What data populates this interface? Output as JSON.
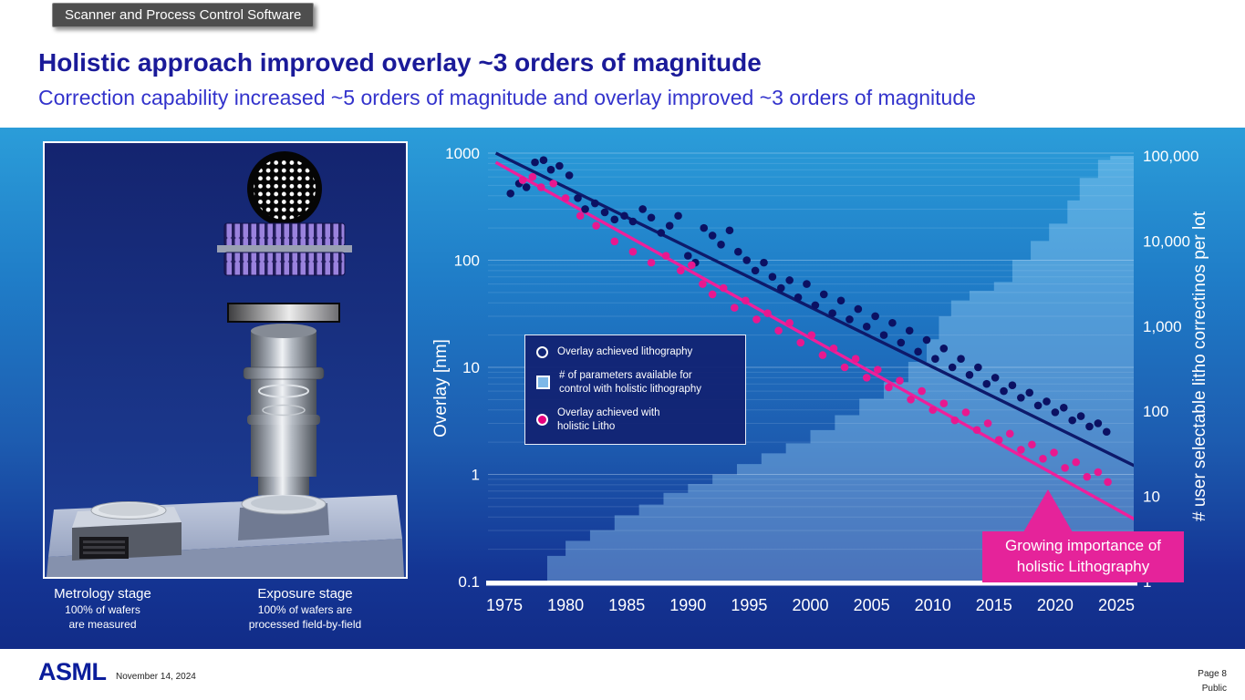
{
  "badge": {
    "label": "Scanner and Process Control Software"
  },
  "header": {
    "title": "Holistic approach improved overlay ~3 orders of magnitude",
    "subtitle": "Correction capability increased ~5 orders of magnitude and overlay improved ~3 orders of magnitude"
  },
  "left_panel": {
    "metrology": {
      "title": "Metrology stage",
      "sub": "100% of wafers\nare measured"
    },
    "exposure": {
      "title": "Exposure stage",
      "sub": "100% of wafers are\nprocessed field-by-field"
    }
  },
  "legend": {
    "items": [
      {
        "marker": "open-circle",
        "label": "Overlay achieved lithography"
      },
      {
        "marker": "square",
        "label": "# of parameters available for\ncontrol with holistic lithography"
      },
      {
        "marker": "pink-circle",
        "label": "Overlay achieved with\nholistic Litho"
      }
    ]
  },
  "callout": {
    "text": "Growing importance of\nholistic Lithography"
  },
  "footer": {
    "logo": "ASML",
    "date": "November 14, 2024",
    "page": "Page 8",
    "classification": "Public"
  },
  "colors": {
    "title_blue": "#1a1a99",
    "subtitle_blue": "#3333cc",
    "accent_pink": "#e6007e",
    "navy_dot": "#0b1163",
    "trend_navy": "#0d1a6b",
    "trend_pink": "#ef1f9b",
    "param_area_fill": "#9ed4f8",
    "panel_top": "#2b9dd9",
    "panel_bottom": "#122c88",
    "asml_blue": "#0b1d9b"
  },
  "chart_data": {
    "type": "scatter",
    "title": "",
    "x_axis": {
      "ticks": [
        1975,
        1980,
        1985,
        1990,
        1995,
        2000,
        2005,
        2010,
        2015,
        2020,
        2025
      ],
      "range": [
        1973.6,
        2026.5
      ]
    },
    "y_left": {
      "label": "Overlay [nm]",
      "scale": "log",
      "ticks": [
        "1000",
        "100",
        "10",
        "1",
        "0.1"
      ],
      "range": [
        0.1,
        1000
      ]
    },
    "y_right": {
      "label": "# user selectable litho correctinos per lot",
      "scale": "log",
      "ticks": [
        "100,000",
        "10,000",
        "1,000",
        "100",
        "10",
        "1"
      ],
      "range": [
        1,
        100000
      ]
    },
    "grid": "log-minor",
    "legend_position": "inside-left",
    "series": [
      {
        "name": "Overlay achieved lithography",
        "type": "scatter",
        "axis": "left",
        "color": "#0b1163",
        "points": [
          [
            1975.5,
            420
          ],
          [
            1976.2,
            520
          ],
          [
            1976.8,
            480
          ],
          [
            1977.5,
            820
          ],
          [
            1978.2,
            860
          ],
          [
            1978.8,
            700
          ],
          [
            1979.5,
            760
          ],
          [
            1980.3,
            620
          ],
          [
            1981,
            380
          ],
          [
            1981.6,
            300
          ],
          [
            1982.4,
            340
          ],
          [
            1983.2,
            280
          ],
          [
            1984,
            240
          ],
          [
            1984.8,
            260
          ],
          [
            1985.5,
            230
          ],
          [
            1986.3,
            300
          ],
          [
            1987,
            250
          ],
          [
            1987.8,
            180
          ],
          [
            1988.5,
            210
          ],
          [
            1989.2,
            260
          ],
          [
            1990,
            110
          ],
          [
            1990.6,
            95
          ],
          [
            1991.3,
            200
          ],
          [
            1992,
            170
          ],
          [
            1992.7,
            140
          ],
          [
            1993.4,
            190
          ],
          [
            1994.1,
            120
          ],
          [
            1994.8,
            100
          ],
          [
            1995.5,
            80
          ],
          [
            1996.2,
            95
          ],
          [
            1996.9,
            70
          ],
          [
            1997.6,
            55
          ],
          [
            1998.3,
            65
          ],
          [
            1999,
            45
          ],
          [
            1999.7,
            60
          ],
          [
            2000.4,
            38
          ],
          [
            2001.1,
            48
          ],
          [
            2001.8,
            32
          ],
          [
            2002.5,
            42
          ],
          [
            2003.2,
            28
          ],
          [
            2003.9,
            35
          ],
          [
            2004.6,
            24
          ],
          [
            2005.3,
            30
          ],
          [
            2006,
            20
          ],
          [
            2006.7,
            26
          ],
          [
            2007.4,
            17
          ],
          [
            2008.1,
            22
          ],
          [
            2008.8,
            14
          ],
          [
            2009.5,
            18
          ],
          [
            2010.2,
            12
          ],
          [
            2010.9,
            15
          ],
          [
            2011.6,
            10
          ],
          [
            2012.3,
            12
          ],
          [
            2013,
            8.5
          ],
          [
            2013.7,
            10
          ],
          [
            2014.4,
            7
          ],
          [
            2015.1,
            8
          ],
          [
            2015.8,
            6
          ],
          [
            2016.5,
            6.8
          ],
          [
            2017.2,
            5.2
          ],
          [
            2017.9,
            5.8
          ],
          [
            2018.6,
            4.4
          ],
          [
            2019.3,
            4.8
          ],
          [
            2020,
            3.8
          ],
          [
            2020.7,
            4.2
          ],
          [
            2021.4,
            3.2
          ],
          [
            2022.1,
            3.5
          ],
          [
            2022.8,
            2.8
          ],
          [
            2023.5,
            3
          ],
          [
            2024.2,
            2.5
          ]
        ]
      },
      {
        "name": "Overlay achieved with holistic Litho",
        "type": "scatter",
        "axis": "left",
        "color": "#e8188f",
        "points": [
          [
            1976.5,
            560
          ],
          [
            1977.3,
            600
          ],
          [
            1978,
            480
          ],
          [
            1979,
            520
          ],
          [
            1980,
            380
          ],
          [
            1981.2,
            260
          ],
          [
            1982.5,
            210
          ],
          [
            1984,
            150
          ],
          [
            1985.5,
            120
          ],
          [
            1987,
            95
          ],
          [
            1988.2,
            110
          ],
          [
            1989.4,
            80
          ],
          [
            1990.3,
            90
          ],
          [
            1991.2,
            60
          ],
          [
            1992,
            48
          ],
          [
            1992.9,
            55
          ],
          [
            1993.8,
            36
          ],
          [
            1994.7,
            42
          ],
          [
            1995.6,
            28
          ],
          [
            1996.5,
            32
          ],
          [
            1997.4,
            22
          ],
          [
            1998.3,
            26
          ],
          [
            1999.2,
            17
          ],
          [
            2000.1,
            20
          ],
          [
            2001,
            13
          ],
          [
            2001.9,
            15
          ],
          [
            2002.8,
            10
          ],
          [
            2003.7,
            12
          ],
          [
            2004.6,
            8
          ],
          [
            2005.5,
            9.5
          ],
          [
            2006.4,
            6.5
          ],
          [
            2007.3,
            7.5
          ],
          [
            2008.2,
            5
          ],
          [
            2009.1,
            6
          ],
          [
            2010,
            4
          ],
          [
            2010.9,
            4.6
          ],
          [
            2011.8,
            3.2
          ],
          [
            2012.7,
            3.8
          ],
          [
            2013.6,
            2.6
          ],
          [
            2014.5,
            3
          ],
          [
            2015.4,
            2.1
          ],
          [
            2016.3,
            2.4
          ],
          [
            2017.2,
            1.7
          ],
          [
            2018.1,
            1.9
          ],
          [
            2019,
            1.4
          ],
          [
            2019.9,
            1.6
          ],
          [
            2020.8,
            1.15
          ],
          [
            2021.7,
            1.3
          ],
          [
            2022.6,
            0.95
          ],
          [
            2023.5,
            1.05
          ],
          [
            2024.3,
            0.85
          ]
        ]
      },
      {
        "name": "Lithography overlay trend",
        "type": "line",
        "axis": "left",
        "color": "#0d1a6b",
        "points": [
          [
            1974.3,
            1000
          ],
          [
            2026.5,
            1.2
          ]
        ]
      },
      {
        "name": "Holistic litho overlay trend",
        "type": "line",
        "axis": "left",
        "color": "#ef1f9b",
        "points": [
          [
            1974.3,
            820
          ],
          [
            2026.5,
            0.38
          ]
        ]
      },
      {
        "name": "# of parameters available for control with holistic lithography",
        "type": "step-area",
        "axis": "right",
        "color": "rgba(158,212,248,0.40)",
        "points": [
          [
            1977.5,
            1
          ],
          [
            1978.5,
            2
          ],
          [
            1980,
            3
          ],
          [
            1982,
            4
          ],
          [
            1984,
            6
          ],
          [
            1986,
            8
          ],
          [
            1988,
            11
          ],
          [
            1990,
            14
          ],
          [
            1992,
            18
          ],
          [
            1994,
            24
          ],
          [
            1996,
            32
          ],
          [
            1998,
            42
          ],
          [
            2000,
            60
          ],
          [
            2002,
            90
          ],
          [
            2004,
            140
          ],
          [
            2006,
            220
          ],
          [
            2008,
            380
          ],
          [
            2009.5,
            700
          ],
          [
            2010.5,
            1300
          ],
          [
            2011.5,
            2000
          ],
          [
            2013,
            2600
          ],
          [
            2015,
            3300
          ],
          [
            2016.5,
            6000
          ],
          [
            2018,
            10000
          ],
          [
            2019.5,
            16000
          ],
          [
            2021,
            30000
          ],
          [
            2022,
            55000
          ],
          [
            2023.5,
            90000
          ],
          [
            2024.5,
            100000
          ]
        ]
      }
    ]
  }
}
